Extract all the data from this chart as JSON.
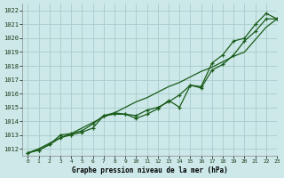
{
  "title": "Graphe pression niveau de la mer (hPa)",
  "bg_color": "#cce8e8",
  "grid_color": "#aacccc",
  "line_color": "#1a5c1a",
  "xlim": [
    -0.5,
    23
  ],
  "ylim": [
    1011.5,
    1022.5
  ],
  "xticks": [
    0,
    1,
    2,
    3,
    4,
    5,
    6,
    7,
    8,
    9,
    10,
    11,
    12,
    13,
    14,
    15,
    16,
    17,
    18,
    19,
    20,
    21,
    22,
    23
  ],
  "yticks": [
    1012,
    1013,
    1014,
    1015,
    1016,
    1017,
    1018,
    1019,
    1020,
    1021,
    1022
  ],
  "series_straight": [
    1011.7,
    1012.0,
    1012.4,
    1012.8,
    1013.1,
    1013.5,
    1013.9,
    1014.3,
    1014.6,
    1015.0,
    1015.4,
    1015.7,
    1016.1,
    1016.5,
    1016.8,
    1017.2,
    1017.6,
    1017.9,
    1018.3,
    1018.7,
    1019.0,
    1019.9,
    1020.8,
    1021.4
  ],
  "series_wavy1": [
    1011.7,
    1011.9,
    1012.3,
    1012.8,
    1013.0,
    1013.2,
    1013.5,
    1014.4,
    1014.6,
    1014.5,
    1014.4,
    1014.8,
    1015.0,
    1015.4,
    1015.9,
    1016.6,
    1016.4,
    1017.7,
    1018.1,
    1018.8,
    1019.8,
    1020.5,
    1021.4,
    1021.4
  ],
  "series_wavy2": [
    1011.7,
    1011.9,
    1012.3,
    1013.0,
    1013.1,
    1013.3,
    1013.8,
    1014.4,
    1014.5,
    1014.5,
    1014.2,
    1014.5,
    1014.9,
    1015.5,
    1015.0,
    1016.6,
    1016.5,
    1018.2,
    1018.8,
    1019.8,
    1020.0,
    1021.0,
    1021.8,
    1021.4
  ]
}
